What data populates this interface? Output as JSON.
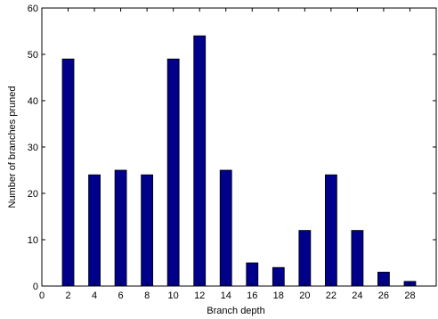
{
  "chart_data": {
    "type": "bar",
    "title": "",
    "xlabel": "Branch depth",
    "ylabel": "Number of branches pruned",
    "x": [
      2,
      4,
      6,
      8,
      10,
      12,
      14,
      16,
      18,
      20,
      22,
      24,
      26,
      28
    ],
    "values": [
      49,
      24,
      25,
      24,
      49,
      54,
      25,
      5,
      4,
      12,
      24,
      12,
      3,
      1
    ],
    "xlim": [
      0,
      30
    ],
    "ylim": [
      0,
      60
    ],
    "xticks": [
      0,
      2,
      4,
      6,
      8,
      10,
      12,
      14,
      16,
      18,
      20,
      22,
      24,
      26,
      28
    ],
    "yticks": [
      0,
      10,
      20,
      30,
      40,
      50,
      60
    ],
    "bar_color": "#00008b",
    "grid": false,
    "legend": "none"
  }
}
